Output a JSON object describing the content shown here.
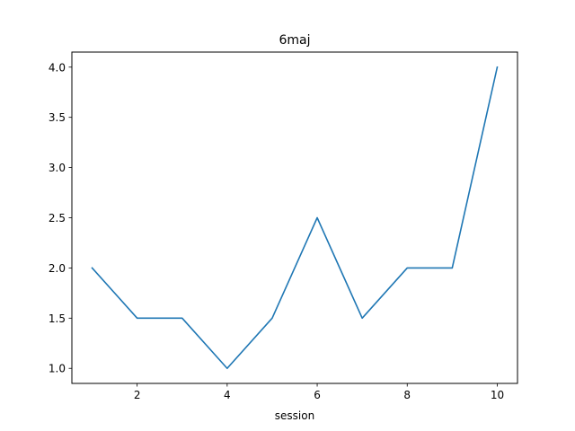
{
  "chart_data": {
    "type": "line",
    "title": "6maj",
    "xlabel": "session",
    "ylabel": "",
    "x": [
      1,
      2,
      3,
      4,
      5,
      6,
      7,
      8,
      9,
      10
    ],
    "series": [
      {
        "values": [
          2.0,
          1.5,
          1.5,
          1.0,
          1.5,
          2.5,
          1.5,
          2.0,
          2.0,
          4.0
        ],
        "color": "#1f77b4"
      }
    ],
    "xlim": [
      0.55,
      10.45
    ],
    "ylim": [
      0.85,
      4.15
    ],
    "xticks": [
      2,
      4,
      6,
      8,
      10
    ],
    "xtick_labels": [
      "2",
      "4",
      "6",
      "8",
      "10"
    ],
    "yticks": [
      1.0,
      1.5,
      2.0,
      2.5,
      3.0,
      3.5,
      4.0
    ],
    "ytick_labels": [
      "1.0",
      "1.5",
      "2.0",
      "2.5",
      "3.0",
      "3.5",
      "4.0"
    ],
    "grid": false,
    "legend": "none"
  }
}
